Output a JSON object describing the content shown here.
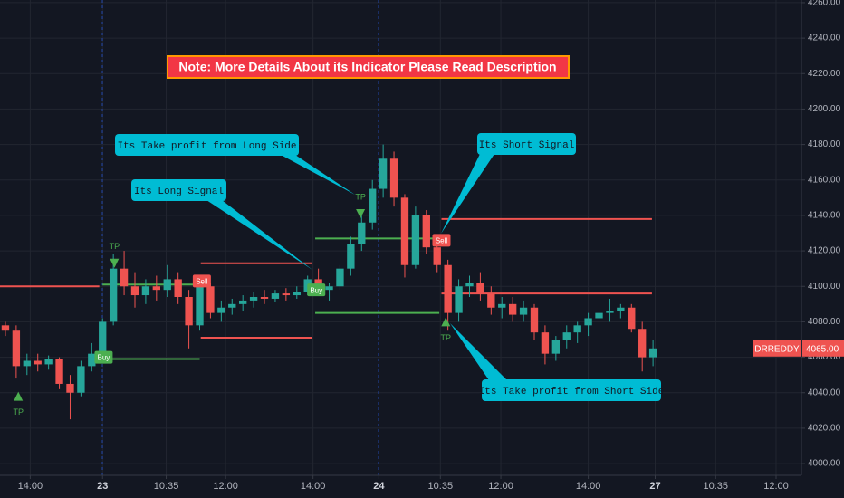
{
  "chart_data": {
    "type": "candlestick",
    "note": "Note: More Details About its Indicator Please Read Description",
    "annotations": [
      "Its Take profit from Long Side",
      "Its Long Signal",
      "Its Short Signal",
      "Its Take profit from Short Side"
    ],
    "up_color": "#26a69a",
    "down_color": "#ef5350",
    "x": [
      0,
      1,
      2,
      3,
      4,
      5,
      6,
      7,
      8,
      9,
      10,
      11,
      12,
      13,
      14,
      15,
      16,
      17,
      18,
      19,
      20,
      21,
      22,
      23,
      24,
      25,
      26,
      27,
      28,
      29,
      30,
      31,
      32,
      33,
      34,
      35,
      36,
      37,
      38,
      39,
      40,
      41,
      42,
      43,
      44,
      45,
      46,
      47,
      48,
      49,
      50,
      51,
      52,
      53,
      54,
      55,
      56,
      57,
      58,
      59,
      60
    ],
    "open": [
      4078,
      4075,
      4055,
      4058,
      4056,
      4059,
      4045,
      4040,
      4055,
      4062,
      4080,
      4110,
      4100,
      4095,
      4100,
      4098,
      4104,
      4094,
      4078,
      4100,
      4085,
      4088,
      4090,
      4092,
      4094,
      4093,
      4096,
      4095,
      4097,
      4104,
      4098,
      4100,
      4110,
      4124,
      4136,
      4155,
      4172,
      4150,
      4112,
      4140,
      4122,
      4112,
      4085,
      4100,
      4102,
      4096,
      4088,
      4090,
      4084,
      4088,
      4074,
      4062,
      4070,
      4074,
      4078,
      4082,
      4085,
      4086,
      4088,
      4076,
      4060
    ],
    "high": [
      4080,
      4078,
      4062,
      4062,
      4061,
      4060,
      4050,
      4058,
      4068,
      4082,
      4118,
      4120,
      4108,
      4104,
      4106,
      4112,
      4108,
      4098,
      4104,
      4102,
      4092,
      4093,
      4095,
      4097,
      4098,
      4098,
      4099,
      4100,
      4106,
      4110,
      4102,
      4112,
      4128,
      4140,
      4160,
      4180,
      4176,
      4152,
      4145,
      4143,
      4128,
      4115,
      4104,
      4106,
      4108,
      4100,
      4094,
      4094,
      4092,
      4090,
      4078,
      4072,
      4078,
      4080,
      4085,
      4088,
      4093,
      4090,
      4090,
      4080,
      4070
    ],
    "low": [
      4072,
      4048,
      4050,
      4052,
      4053,
      4042,
      4025,
      4038,
      4052,
      4058,
      4078,
      4095,
      4088,
      4090,
      4092,
      4094,
      4090,
      4065,
      4075,
      4082,
      4080,
      4084,
      4086,
      4088,
      4090,
      4091,
      4092,
      4093,
      4095,
      4096,
      4092,
      4098,
      4106,
      4120,
      4132,
      4150,
      4145,
      4105,
      4110,
      4118,
      4108,
      4075,
      4080,
      4094,
      4092,
      4084,
      4082,
      4080,
      4080,
      4070,
      4056,
      4058,
      4065,
      4068,
      4072,
      4078,
      4080,
      4082,
      4074,
      4052,
      4055
    ],
    "close": [
      4075,
      4055,
      4058,
      4056,
      4059,
      4045,
      4040,
      4055,
      4062,
      4080,
      4110,
      4100,
      4095,
      4100,
      4098,
      4104,
      4094,
      4078,
      4100,
      4085,
      4088,
      4090,
      4092,
      4094,
      4093,
      4096,
      4095,
      4097,
      4104,
      4098,
      4100,
      4110,
      4124,
      4136,
      4155,
      4172,
      4150,
      4112,
      4140,
      4122,
      4112,
      4085,
      4100,
      4102,
      4096,
      4088,
      4090,
      4084,
      4088,
      4074,
      4062,
      4070,
      4074,
      4078,
      4082,
      4085,
      4086,
      4088,
      4076,
      4060,
      4065
    ],
    "levels": [
      {
        "x": [
          -0.5,
          8.7
        ],
        "value": 4100,
        "color": "#ef5350"
      },
      {
        "x": [
          7.9,
          18
        ],
        "value": 4059,
        "color": "#4caf50"
      },
      {
        "x": [
          9,
          18
        ],
        "value": 4101,
        "color": "#4caf50"
      },
      {
        "x": [
          18.1,
          28.4
        ],
        "value": 4113,
        "color": "#ef5350"
      },
      {
        "x": [
          18.1,
          28.4
        ],
        "value": 4071,
        "color": "#ef5350"
      },
      {
        "x": [
          28.7,
          40.2
        ],
        "value": 4127,
        "color": "#4caf50"
      },
      {
        "x": [
          28.7,
          40.2
        ],
        "value": 4085,
        "color": "#4caf50"
      },
      {
        "x": [
          40.4,
          59.9
        ],
        "value": 4138,
        "color": "#ef5350"
      },
      {
        "x": [
          40.4,
          59.9
        ],
        "value": 4096,
        "color": "#ef5350"
      }
    ],
    "signals": [
      {
        "x": 1.2,
        "value": 4038,
        "label": "TP",
        "shape": "triangle-up",
        "color": "#4caf50"
      },
      {
        "x": 9.1,
        "value": 4060,
        "label": "Buy",
        "shape": "tag",
        "color": "#4caf50"
      },
      {
        "x": 10.1,
        "value": 4113,
        "label": "TP",
        "shape": "triangle-down",
        "color": "#4caf50"
      },
      {
        "x": 18.2,
        "value": 4103,
        "label": "Sell",
        "shape": "tag",
        "color": "#ef5350"
      },
      {
        "x": 28.8,
        "value": 4098,
        "label": "Buy",
        "shape": "tag",
        "color": "#4caf50"
      },
      {
        "x": 32.9,
        "value": 4141,
        "label": "TP",
        "shape": "triangle-down",
        "color": "#4caf50"
      },
      {
        "x": 40.4,
        "value": 4126,
        "label": "Sell",
        "shape": "tag",
        "color": "#ef5350"
      },
      {
        "x": 40.8,
        "value": 4080,
        "label": "TP",
        "shape": "triangle-up",
        "color": "#4caf50"
      }
    ],
    "last_price": {
      "name": "DRREDDY",
      "value": 4065,
      "label": "4065.00",
      "color": "#ef5350"
    },
    "xlim": [
      -0.5,
      73.75
    ],
    "xticks": [
      {
        "value": 2.3,
        "label": "14:00"
      },
      {
        "value": 9,
        "label": "23"
      },
      {
        "value": 14.9,
        "label": "10:35"
      },
      {
        "value": 20.4,
        "label": "12:00"
      },
      {
        "value": 28.5,
        "label": "14:00"
      },
      {
        "value": 34.6,
        "label": "24"
      },
      {
        "value": 40.3,
        "label": "10:35"
      },
      {
        "value": 45.9,
        "label": "12:00"
      },
      {
        "value": 54,
        "label": "14:00"
      },
      {
        "value": 60.2,
        "label": "27"
      },
      {
        "value": 65.8,
        "label": "10:35"
      },
      {
        "value": 71.4,
        "label": "12:00"
      }
    ],
    "ylim": [
      3993.4,
      4261.5
    ],
    "yticks": [
      {
        "value": 4000,
        "label": "4000.00"
      },
      {
        "value": 4020,
        "label": "4020.00"
      },
      {
        "value": 4040,
        "label": "4040.00"
      },
      {
        "value": 4060,
        "label": "4060.00"
      },
      {
        "value": 4080,
        "label": "4080.00"
      },
      {
        "value": 4100,
        "label": "4100.00"
      },
      {
        "value": 4120,
        "label": "4120.00"
      },
      {
        "value": 4140,
        "label": "4140.00"
      },
      {
        "value": 4160,
        "label": "4160.00"
      },
      {
        "value": 4180,
        "label": "4180.00"
      },
      {
        "value": 4200,
        "label": "4200.00"
      },
      {
        "value": 4220,
        "label": "4220.00"
      },
      {
        "value": 4240,
        "label": "4240.00"
      },
      {
        "value": 4260,
        "label": "4260.00"
      }
    ],
    "grid": true
  }
}
